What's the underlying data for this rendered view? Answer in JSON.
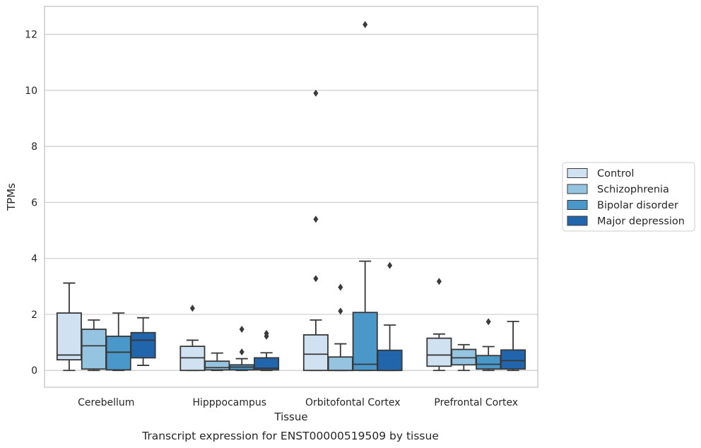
{
  "chart_data": {
    "type": "box",
    "caption": "Transcript expression for ENST00000519509 by tissue",
    "xlabel": "Tissue",
    "ylabel": "TPMs",
    "ylim": [
      -0.6,
      13.0
    ],
    "yticks": [
      0,
      2,
      4,
      6,
      8,
      10,
      12
    ],
    "grid": "horizontal",
    "legend_position": "right",
    "categories": [
      "Cerebellum",
      "Hipppocampus",
      "Orbitofontal Cortex",
      "Prefrontal Cortex"
    ],
    "series": [
      {
        "name": "Control",
        "color": "#d0e1f2",
        "boxes": [
          {
            "whisker_low": 0.0,
            "q1": 0.38,
            "median": 0.55,
            "q3": 2.05,
            "whisker_high": 3.12,
            "outliers": []
          },
          {
            "whisker_low": 0.0,
            "q1": 0.0,
            "median": 0.45,
            "q3": 0.86,
            "whisker_high": 1.08,
            "outliers": [
              2.22
            ]
          },
          {
            "whisker_low": 0.0,
            "q1": 0.0,
            "median": 0.58,
            "q3": 1.27,
            "whisker_high": 1.8,
            "outliers": [
              3.28,
              5.4,
              9.9
            ]
          },
          {
            "whisker_low": 0.0,
            "q1": 0.15,
            "median": 0.55,
            "q3": 1.15,
            "whisker_high": 1.3,
            "outliers": [
              3.18
            ]
          }
        ]
      },
      {
        "name": "Schizophrenia",
        "color": "#94c4df",
        "boxes": [
          {
            "whisker_low": 0.0,
            "q1": 0.05,
            "median": 0.88,
            "q3": 1.47,
            "whisker_high": 1.8,
            "outliers": []
          },
          {
            "whisker_low": 0.0,
            "q1": 0.02,
            "median": 0.1,
            "q3": 0.33,
            "whisker_high": 0.62,
            "outliers": []
          },
          {
            "whisker_low": 0.0,
            "q1": 0.0,
            "median": 0.0,
            "q3": 0.48,
            "whisker_high": 0.95,
            "outliers": [
              2.12,
              2.97
            ]
          },
          {
            "whisker_low": 0.0,
            "q1": 0.2,
            "median": 0.45,
            "q3": 0.75,
            "whisker_high": 0.92,
            "outliers": []
          }
        ]
      },
      {
        "name": "Bipolar disorder",
        "color": "#4a98c9",
        "boxes": [
          {
            "whisker_low": 0.0,
            "q1": 0.02,
            "median": 0.65,
            "q3": 1.22,
            "whisker_high": 2.05,
            "outliers": []
          },
          {
            "whisker_low": 0.0,
            "q1": 0.02,
            "median": 0.12,
            "q3": 0.2,
            "whisker_high": 0.42,
            "outliers": [
              0.66,
              1.47
            ]
          },
          {
            "whisker_low": 0.0,
            "q1": 0.0,
            "median": 0.22,
            "q3": 2.07,
            "whisker_high": 3.9,
            "outliers": [
              12.35
            ]
          },
          {
            "whisker_low": 0.0,
            "q1": 0.05,
            "median": 0.22,
            "q3": 0.53,
            "whisker_high": 0.85,
            "outliers": [
              1.74
            ]
          }
        ]
      },
      {
        "name": "Major depression",
        "color": "#2166ac",
        "boxes": [
          {
            "whisker_low": 0.18,
            "q1": 0.45,
            "median": 1.08,
            "q3": 1.35,
            "whisker_high": 1.88,
            "outliers": []
          },
          {
            "whisker_low": 0.0,
            "q1": 0.02,
            "median": 0.08,
            "q3": 0.45,
            "whisker_high": 0.63,
            "outliers": [
              1.22,
              1.32
            ]
          },
          {
            "whisker_low": 0.0,
            "q1": 0.0,
            "median": 0.0,
            "q3": 0.72,
            "whisker_high": 1.62,
            "outliers": [
              3.75
            ]
          },
          {
            "whisker_low": 0.0,
            "q1": 0.05,
            "median": 0.35,
            "q3": 0.73,
            "whisker_high": 1.75,
            "outliers": []
          }
        ]
      }
    ],
    "colors": {
      "box_edge": "#383838",
      "grid": "#cccccc",
      "frame": "#cccccc",
      "legend_border": "#cccccc"
    }
  }
}
